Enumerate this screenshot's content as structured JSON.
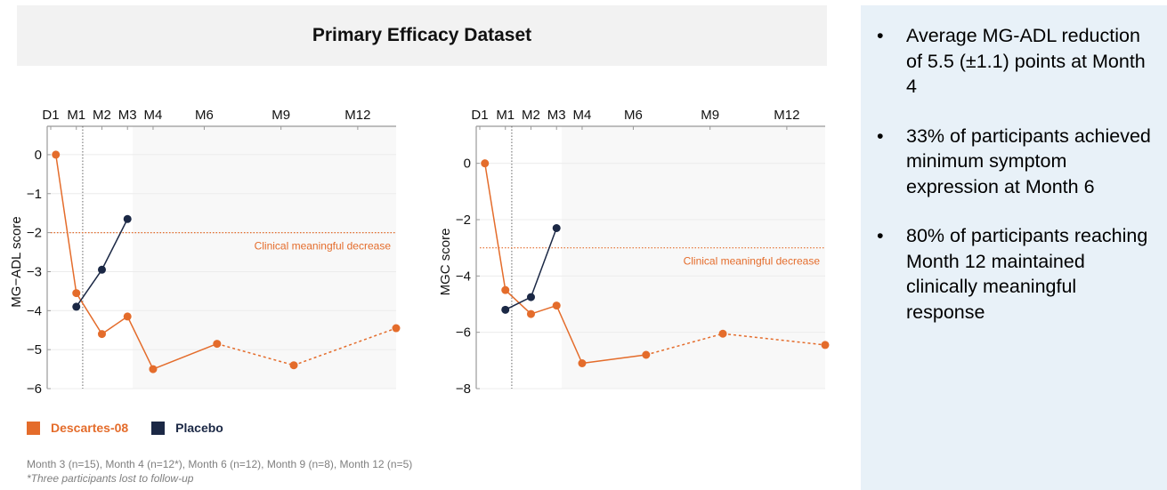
{
  "header": {
    "title": "Primary Efficacy Dataset"
  },
  "colors": {
    "descartes": "#e46c2b",
    "placebo": "#1b2845",
    "shade": "#f8f8f8",
    "panel": "#e8f1f8"
  },
  "chart_data": [
    {
      "type": "line",
      "ylabel": "MG−ADL score",
      "ylim": [
        -6,
        0.5
      ],
      "yticks": [
        0,
        -1,
        -2,
        -3,
        -4,
        -5,
        -6
      ],
      "ytick_labels": [
        "0",
        "−1",
        "−2",
        "−3",
        "−4",
        "−5",
        "−6"
      ],
      "xlim": [
        0,
        13.5
      ],
      "xticks": [
        0,
        1,
        2,
        3,
        4,
        6,
        9,
        12
      ],
      "xtick_labels": [
        "D1",
        "M1",
        "M2",
        "M3",
        "M4",
        "M6",
        "M9",
        "M12"
      ],
      "shaded_from": 3.2,
      "vline_at": 1.25,
      "threshold": {
        "value": -2,
        "label": "Clinical meaningful decrease"
      },
      "series": [
        {
          "name": "Descartes-08",
          "color_key": "descartes",
          "x": [
            0.2,
            1,
            2,
            3,
            4,
            6.5,
            9.5,
            13.5
          ],
          "y": [
            0,
            -3.55,
            -4.6,
            -4.15,
            -5.5,
            -4.85,
            -5.4,
            -4.45
          ],
          "dashed_from_index": 5
        },
        {
          "name": "Placebo",
          "color_key": "placebo",
          "x": [
            1,
            2,
            3
          ],
          "y": [
            -3.9,
            -2.95,
            -1.65
          ],
          "dashed_from_index": null
        }
      ]
    },
    {
      "type": "line",
      "ylabel": "MGC score",
      "ylim": [
        -8,
        1
      ],
      "yticks": [
        0,
        -2,
        -4,
        -6,
        -8
      ],
      "ytick_labels": [
        "0",
        "−2",
        "−4",
        "−6",
        "−8"
      ],
      "xlim": [
        0,
        13.5
      ],
      "xticks": [
        0,
        1,
        2,
        3,
        4,
        6,
        9,
        12
      ],
      "xtick_labels": [
        "D1",
        "M1",
        "M2",
        "M3",
        "M4",
        "M6",
        "M9",
        "M12"
      ],
      "shaded_from": 3.2,
      "vline_at": 1.25,
      "threshold": {
        "value": -3,
        "label": "Clinical meaningful decrease"
      },
      "series": [
        {
          "name": "Descartes-08",
          "color_key": "descartes",
          "x": [
            0.2,
            1,
            2,
            3,
            4,
            6.5,
            9.5,
            13.5
          ],
          "y": [
            0,
            -4.5,
            -5.35,
            -5.05,
            -7.1,
            -6.8,
            -6.05,
            -6.45
          ],
          "dashed_from_index": 5
        },
        {
          "name": "Placebo",
          "color_key": "placebo",
          "x": [
            1,
            2,
            3
          ],
          "y": [
            -5.2,
            -4.75,
            -2.3
          ],
          "dashed_from_index": null
        }
      ]
    }
  ],
  "legend": [
    {
      "label": "Descartes-08",
      "color_key": "descartes"
    },
    {
      "label": "Placebo",
      "color_key": "placebo"
    }
  ],
  "footnote": {
    "counts": "Month 3 (n=15), Month 4 (n=12*), Month 6 (n=12), Month 9 (n=8), Month 12 (n=5)",
    "note": "*Three participants lost to follow-up"
  },
  "side_panel": {
    "bullet_symbol": "•",
    "bullets": [
      "Average MG-ADL reduction of 5.5 (±1.1) points at Month 4",
      "33% of participants achieved minimum symptom expression at Month 6",
      "80% of participants reaching Month 12 maintained clinically meaningful response"
    ]
  }
}
